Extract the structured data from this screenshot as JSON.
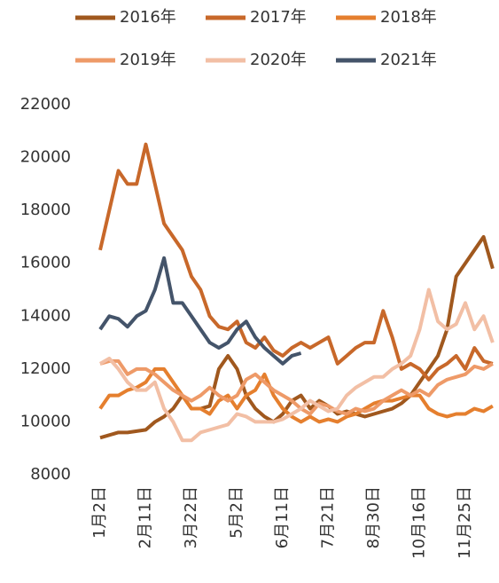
{
  "chart_data": {
    "type": "line",
    "categories": [
      "1月2日",
      null,
      null,
      null,
      null,
      "2月11日",
      null,
      null,
      null,
      null,
      "3月22日",
      null,
      null,
      null,
      null,
      "5月2日",
      null,
      null,
      null,
      null,
      "6月11日",
      null,
      null,
      null,
      null,
      "7月21日",
      null,
      null,
      null,
      null,
      "8月30日",
      null,
      null,
      null,
      null,
      "10月16日",
      null,
      null,
      null,
      null,
      "11月25日",
      null,
      null,
      null
    ],
    "ylim": [
      8000,
      22000
    ],
    "yticks": [
      8000,
      10000,
      12000,
      14000,
      16000,
      18000,
      20000,
      22000
    ],
    "grid": false,
    "legend": "top",
    "series": [
      {
        "name": "2016年",
        "color": "#a0581e",
        "values": [
          9400,
          9500,
          9600,
          9600,
          9650,
          9700,
          10000,
          10200,
          10500,
          11000,
          10500,
          10500,
          10600,
          12000,
          12500,
          12000,
          11000,
          10500,
          10200,
          10000,
          10300,
          10800,
          11000,
          10500,
          10800,
          10600,
          10300,
          10400,
          10300,
          10200,
          10300,
          10400,
          10500,
          10700,
          11000,
          11500,
          12000,
          12500,
          13500,
          15500,
          16000,
          16500,
          17000,
          15800
        ]
      },
      {
        "name": "2017年",
        "color": "#c8682a",
        "values": [
          16500,
          18000,
          19500,
          19000,
          19000,
          20500,
          19000,
          17500,
          17000,
          16500,
          15500,
          15000,
          14000,
          13600,
          13500,
          13800,
          13000,
          12800,
          13200,
          12700,
          12500,
          12800,
          13000,
          12800,
          13000,
          13200,
          12200,
          12500,
          12800,
          13000,
          13000,
          14200,
          13200,
          12000,
          12200,
          12000,
          11600,
          12000,
          12200,
          12500,
          12000,
          12800,
          12300,
          12200
        ]
      },
      {
        "name": "2018年",
        "color": "#e57f2e",
        "values": [
          10500,
          11000,
          11000,
          11200,
          11300,
          11500,
          12000,
          12000,
          11500,
          11000,
          10500,
          10500,
          10300,
          10800,
          11000,
          10500,
          11000,
          11200,
          11800,
          11000,
          10500,
          10200,
          10000,
          10200,
          10000,
          10100,
          10000,
          10200,
          10300,
          10500,
          10700,
          10800,
          10800,
          10900,
          11000,
          11000,
          10500,
          10300,
          10200,
          10300,
          10300,
          10500,
          10400,
          10600
        ]
      },
      {
        "name": "2019年",
        "color": "#ee9a68",
        "values": [
          12200,
          12300,
          12300,
          11800,
          12000,
          12000,
          11800,
          11500,
          11200,
          11000,
          10800,
          11000,
          11300,
          11000,
          10800,
          11000,
          11600,
          11800,
          11500,
          11200,
          11000,
          10800,
          10500,
          10300,
          10700,
          10600,
          10400,
          10300,
          10500,
          10400,
          10500,
          10800,
          11000,
          11200,
          11000,
          11200,
          11000,
          11400,
          11600,
          11700,
          11800,
          12100,
          12000,
          12200
        ]
      },
      {
        "name": "2020年",
        "color": "#f2bfa5",
        "values": [
          12200,
          12400,
          12000,
          11500,
          11200,
          11200,
          11500,
          10500,
          10000,
          9300,
          9300,
          9600,
          9700,
          9800,
          9900,
          10300,
          10200,
          10000,
          10000,
          10000,
          10100,
          10300,
          10500,
          10800,
          10600,
          10400,
          10500,
          11000,
          11300,
          11500,
          11700,
          11700,
          12000,
          12200,
          12500,
          13500,
          15000,
          13800,
          13500,
          13700,
          14500,
          13500,
          14000,
          13000
        ]
      },
      {
        "name": "2021年",
        "color": "#44546a",
        "values": [
          13500,
          14000,
          13900,
          13600,
          14000,
          14200,
          15000,
          16200,
          14500,
          14500,
          14000,
          13500,
          13000,
          12800,
          13000,
          13500,
          13800,
          13200,
          12800,
          12500,
          12200,
          12500,
          12600,
          null,
          null,
          null,
          null,
          null,
          null,
          null,
          null,
          null,
          null,
          null,
          null,
          null,
          null,
          null,
          null,
          null,
          null,
          null,
          null,
          null
        ]
      }
    ]
  }
}
